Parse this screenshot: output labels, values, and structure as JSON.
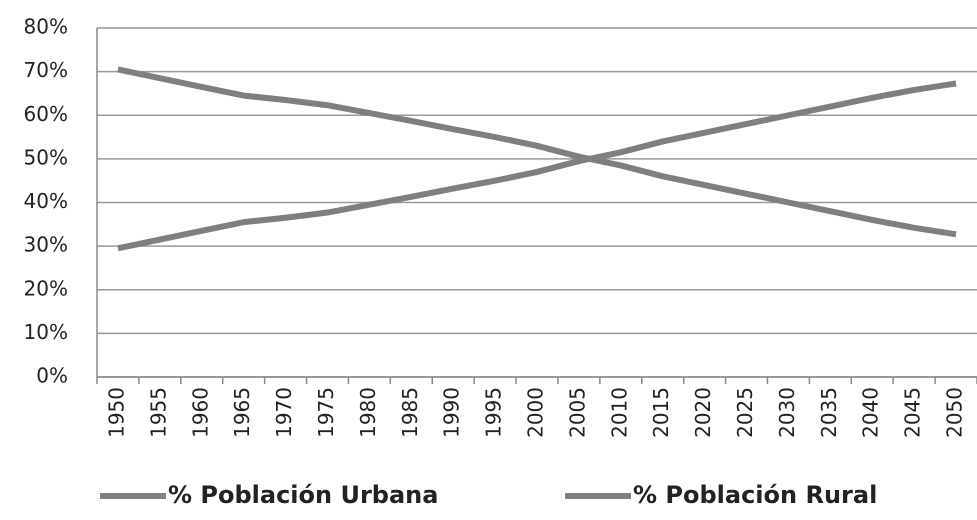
{
  "chart_data": {
    "type": "line",
    "categories": [
      "1950",
      "1955",
      "1960",
      "1965",
      "1970",
      "1975",
      "1980",
      "1985",
      "1990",
      "1995",
      "2000",
      "2005",
      "2010",
      "2015",
      "2020",
      "2025",
      "2030",
      "2035",
      "2040",
      "2045",
      "2050"
    ],
    "series": [
      {
        "name": "% Población Urbana",
        "color": "#7f7f7f",
        "values": [
          29.5,
          31.5,
          33.5,
          35.5,
          36.5,
          37.7,
          39.5,
          41.3,
          43.2,
          45,
          47,
          49.5,
          51.5,
          54,
          56,
          58,
          60,
          62,
          64,
          65.8,
          67.3
        ]
      },
      {
        "name": "% Población Rural",
        "color": "#7f7f7f",
        "values": [
          70.5,
          68.5,
          66.5,
          64.5,
          63.5,
          62.3,
          60.5,
          58.7,
          56.8,
          55,
          53,
          50.5,
          48.5,
          46,
          44,
          42,
          40,
          38,
          36,
          34.2,
          32.7
        ]
      }
    ],
    "ylim": [
      0,
      80
    ],
    "yticks": [
      {
        "value": 0,
        "label": "0%"
      },
      {
        "value": 10,
        "label": "10%"
      },
      {
        "value": 20,
        "label": "20%"
      },
      {
        "value": 30,
        "label": "30%"
      },
      {
        "value": 40,
        "label": "40%"
      },
      {
        "value": 50,
        "label": "50%"
      },
      {
        "value": 60,
        "label": "60%"
      },
      {
        "value": 70,
        "label": "70%"
      },
      {
        "value": 80,
        "label": "80%"
      }
    ],
    "grid": true,
    "legend": "bottom"
  }
}
